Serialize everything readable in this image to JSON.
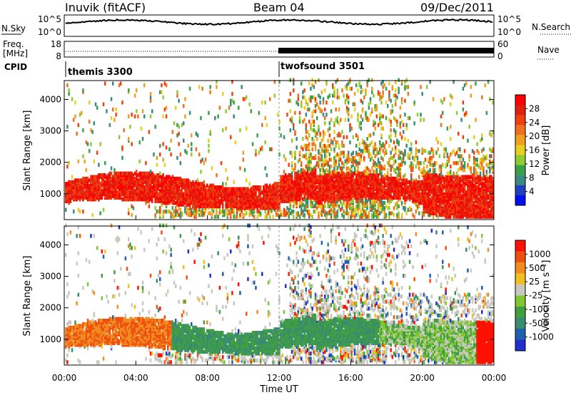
{
  "header": {
    "station": "Inuvik (fitACF)",
    "beam": "Beam 04",
    "date": "09/Dec/2011"
  },
  "panels": {
    "nsky": {
      "label": "N.Sky",
      "right_label": "N.Search",
      "left_ticks": [
        "10^5",
        "10^0"
      ],
      "right_ticks": [
        "10^5",
        "10^0"
      ]
    },
    "freq": {
      "label_line1": "Freq.",
      "label_line2": "[MHz]",
      "right_label": "Nave",
      "left_ticks": [
        "18",
        "8"
      ],
      "right_ticks": [
        "60",
        "0"
      ]
    },
    "cpid": {
      "label": "CPID",
      "segments": [
        {
          "name": "themis 3300",
          "start_hour": 0,
          "end_hour": 12
        },
        {
          "name": "twofsound 3501",
          "start_hour": 12,
          "end_hour": 24
        }
      ]
    }
  },
  "chart_data": [
    {
      "type": "heatmap",
      "title": "",
      "xlabel": "Time UT",
      "ylabel": "Slant Range [km]",
      "x_ticks": [
        "00:00",
        "04:00",
        "08:00",
        "12:00",
        "16:00",
        "20:00",
        "00:00"
      ],
      "x_range_hours": [
        0,
        24
      ],
      "y_ticks": [
        1000,
        2000,
        3000,
        4000
      ],
      "ylim": [
        180,
        4600
      ],
      "colorbar": {
        "label": "Power [dB]",
        "ticks": [
          "28",
          "24",
          "20",
          "16",
          "12",
          "8",
          "4"
        ],
        "colors": [
          "#0010ee",
          "#2040c0",
          "#3a8a80",
          "#3aa04a",
          "#90cc30",
          "#e8d020",
          "#f0a020",
          "#f07020",
          "#ee4010",
          "#e02010",
          "#ff0000"
        ]
      },
      "grid": false
    },
    {
      "type": "heatmap",
      "title": "",
      "xlabel": "Time UT",
      "ylabel": "Slant Range [km]",
      "x_ticks": [
        "00:00",
        "04:00",
        "08:00",
        "12:00",
        "16:00",
        "20:00",
        "00:00"
      ],
      "x_range_hours": [
        0,
        24
      ],
      "y_ticks": [
        1000,
        2000,
        3000,
        4000
      ],
      "ylim": [
        180,
        4600
      ],
      "colorbar": {
        "label": "Velocity [m s⁻¹]",
        "ticks": [
          "1000",
          "500",
          "25",
          "-25",
          "-100",
          "-500",
          "-1000"
        ],
        "colors": [
          "#2030c8",
          "#2060b0",
          "#3a8c70",
          "#40a040",
          "#80c830",
          "#c8c8c0",
          "#f0c020",
          "#f08c20",
          "#ee5010",
          "#ff1000"
        ]
      },
      "grid": false
    }
  ]
}
